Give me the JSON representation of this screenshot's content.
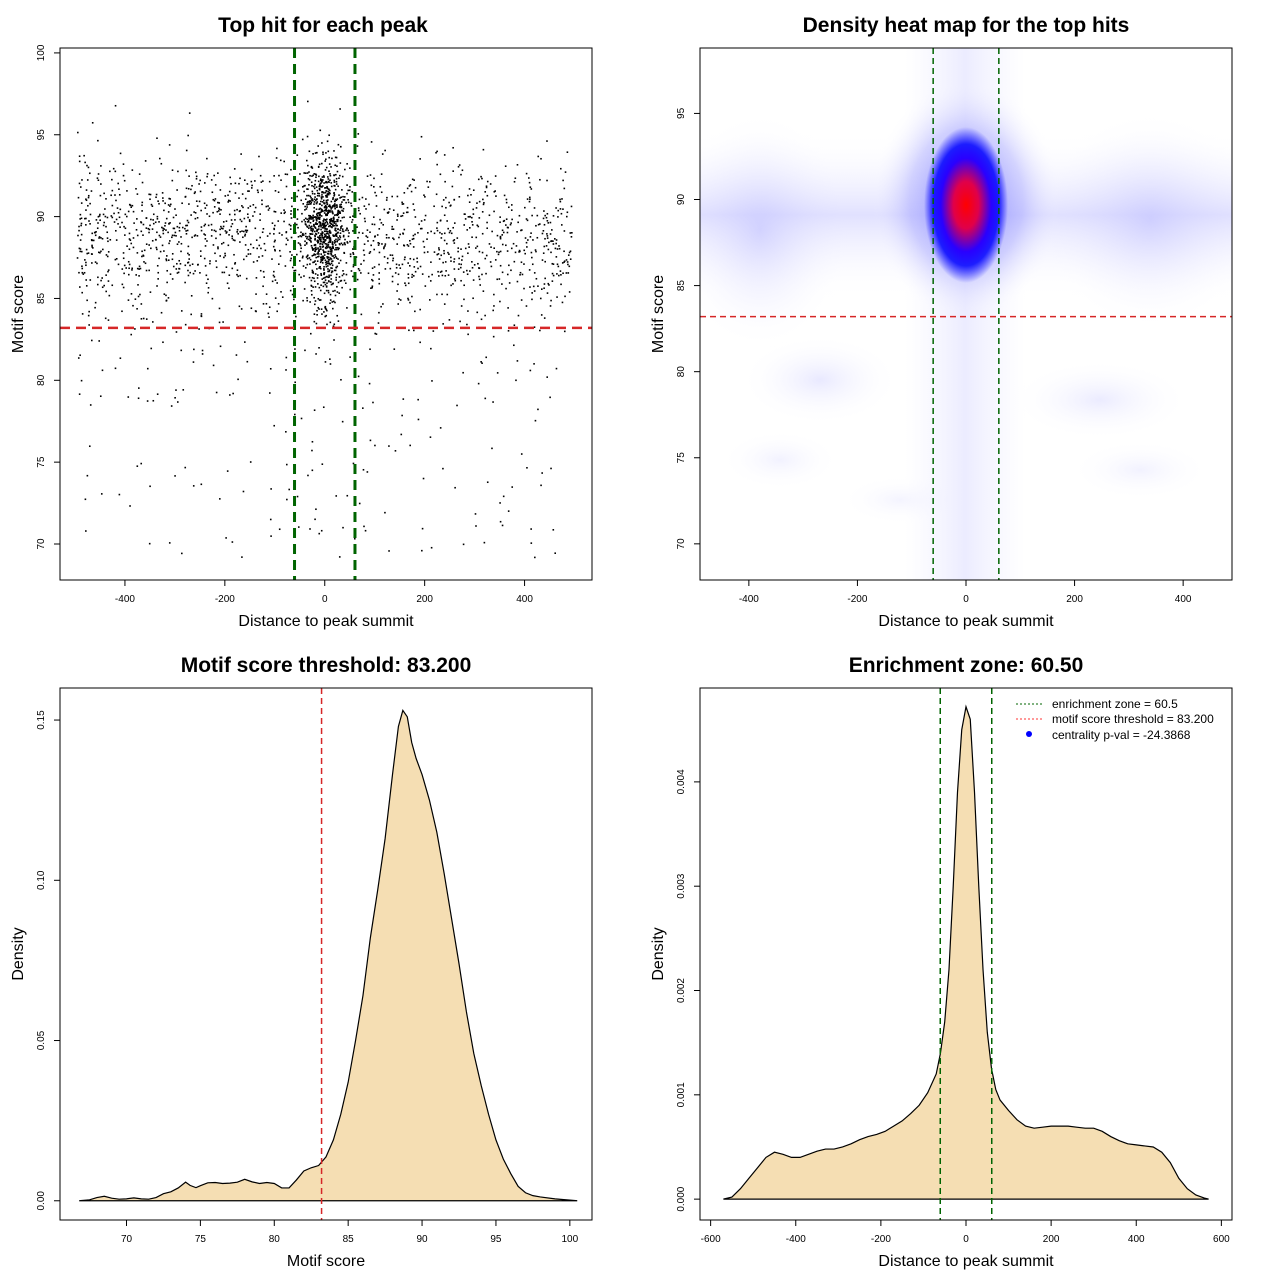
{
  "chart_data": [
    {
      "id": "scatter",
      "type": "scatter",
      "title": "Top hit for each peak",
      "xlabel": "Distance to peak summit",
      "ylabel": "Motif score",
      "xlim": [
        -530,
        535
      ],
      "ylim": [
        67.8,
        100.3
      ],
      "xticks": [
        -400,
        -200,
        0,
        200,
        400
      ],
      "yticks": [
        70,
        75,
        80,
        85,
        90,
        95,
        100
      ],
      "vlines": [
        -60.5,
        60.5
      ],
      "hline": 83.2,
      "point_count": 2600,
      "point_color": "#000000",
      "vline_color": "#006400",
      "hline_color": "#d62728"
    },
    {
      "id": "heatmap",
      "type": "heatmap",
      "title": "Density heat map for the top hits",
      "xlabel": "Distance to peak summit",
      "ylabel": "Motif score",
      "xlim": [
        -490,
        490
      ],
      "ylim": [
        67.9,
        98.8
      ],
      "xticks": [
        -400,
        -200,
        0,
        200,
        400
      ],
      "yticks": [
        70,
        75,
        80,
        85,
        90,
        95
      ],
      "vlines": [
        -60.5,
        60.5
      ],
      "hline": 83.2,
      "palette": [
        "#ffffff",
        "#0000ff",
        "#ff0000"
      ],
      "vline_color": "#006400",
      "hline_color": "#d62728"
    },
    {
      "id": "score_density",
      "type": "area",
      "title": "Motif score threshold: 83.200",
      "xlabel": "Motif score",
      "ylabel": "Density",
      "xlim": [
        65.5,
        101.5
      ],
      "ylim": [
        -0.006,
        0.16
      ],
      "xticks": [
        70,
        75,
        80,
        85,
        90,
        95,
        100
      ],
      "yticks": [
        0.0,
        0.05,
        0.1,
        0.15
      ],
      "ytick_labels": [
        "0.00",
        "0.05",
        "0.10",
        "0.15"
      ],
      "fill": "#f5deb3",
      "vline": 83.2,
      "vline_color": "#d62728",
      "x": [
        66.8,
        67.5,
        68.0,
        68.5,
        69.0,
        69.5,
        70.0,
        70.5,
        71.0,
        71.5,
        72.0,
        72.5,
        73.0,
        73.5,
        74.0,
        74.3,
        74.7,
        75.0,
        75.5,
        76.0,
        76.5,
        77.0,
        77.5,
        78.0,
        78.5,
        79.0,
        79.5,
        80.0,
        80.5,
        81.0,
        81.5,
        82.0,
        82.5,
        83.0,
        83.5,
        84.0,
        84.5,
        85.0,
        85.5,
        86.0,
        86.5,
        87.0,
        87.5,
        88.0,
        88.4,
        88.7,
        89.0,
        89.3,
        89.6,
        90.0,
        90.5,
        91.0,
        91.5,
        92.0,
        92.5,
        93.0,
        93.5,
        94.0,
        94.5,
        95.0,
        95.5,
        96.0,
        96.5,
        97.0,
        97.5,
        98.0,
        99.0,
        100.0,
        100.5
      ],
      "y": [
        0.0,
        0.0003,
        0.001,
        0.0014,
        0.0008,
        0.0005,
        0.0006,
        0.0009,
        0.0006,
        0.0005,
        0.001,
        0.0022,
        0.0028,
        0.004,
        0.0058,
        0.0048,
        0.0041,
        0.0047,
        0.0056,
        0.0057,
        0.0054,
        0.0055,
        0.0058,
        0.0067,
        0.0059,
        0.0054,
        0.0057,
        0.0054,
        0.004,
        0.004,
        0.0065,
        0.0093,
        0.0103,
        0.011,
        0.0137,
        0.019,
        0.027,
        0.037,
        0.05,
        0.064,
        0.082,
        0.097,
        0.113,
        0.133,
        0.148,
        0.153,
        0.151,
        0.143,
        0.138,
        0.133,
        0.125,
        0.115,
        0.102,
        0.088,
        0.074,
        0.059,
        0.046,
        0.036,
        0.027,
        0.019,
        0.013,
        0.0085,
        0.0045,
        0.0025,
        0.0016,
        0.0012,
        0.0006,
        0.0002,
        0.0
      ]
    },
    {
      "id": "distance_density",
      "type": "area",
      "title": "Enrichment zone: 60.50",
      "xlabel": "Distance to peak summit",
      "ylabel": "Density",
      "xlim": [
        -625,
        625
      ],
      "ylim": [
        -0.0002,
        0.0049
      ],
      "xticks": [
        -600,
        -400,
        -200,
        0,
        200,
        400,
        600
      ],
      "yticks": [
        0.0,
        0.001,
        0.002,
        0.003,
        0.004
      ],
      "ytick_labels": [
        "0.000",
        "0.001",
        "0.002",
        "0.003",
        "0.004"
      ],
      "fill": "#f5deb3",
      "vlines": [
        -60.5,
        60.5
      ],
      "vline_color": "#006400",
      "x": [
        -570,
        -550,
        -530,
        -510,
        -490,
        -470,
        -450,
        -430,
        -410,
        -390,
        -370,
        -350,
        -330,
        -310,
        -290,
        -270,
        -250,
        -230,
        -210,
        -190,
        -170,
        -150,
        -130,
        -110,
        -90,
        -70,
        -60,
        -50,
        -40,
        -30,
        -20,
        -10,
        0,
        10,
        20,
        30,
        40,
        50,
        60,
        70,
        80,
        100,
        120,
        140,
        160,
        180,
        200,
        220,
        240,
        260,
        280,
        300,
        320,
        340,
        360,
        380,
        400,
        420,
        440,
        460,
        480,
        500,
        520,
        540,
        560,
        570
      ],
      "y": [
        0.0,
        2e-05,
        0.0001,
        0.0002,
        0.0003,
        0.0004,
        0.00045,
        0.00043,
        0.0004,
        0.0004,
        0.00043,
        0.00046,
        0.00048,
        0.00048,
        0.0005,
        0.00053,
        0.00057,
        0.0006,
        0.00062,
        0.00065,
        0.0007,
        0.00075,
        0.00082,
        0.0009,
        0.00102,
        0.0012,
        0.0014,
        0.0017,
        0.0022,
        0.003,
        0.0039,
        0.0045,
        0.00472,
        0.0046,
        0.0039,
        0.003,
        0.0022,
        0.0016,
        0.00125,
        0.00105,
        0.00095,
        0.00085,
        0.00076,
        0.0007,
        0.00068,
        0.00069,
        0.0007,
        0.0007,
        0.0007,
        0.00069,
        0.00068,
        0.00068,
        0.00065,
        0.0006,
        0.00056,
        0.00053,
        0.00052,
        0.00051,
        0.0005,
        0.00045,
        0.00035,
        0.0002,
        0.0001,
        4e-05,
        1e-05,
        0.0
      ]
    }
  ],
  "legend": {
    "placement": "top-right",
    "items": [
      {
        "label": "enrichment zone = 60.5",
        "color": "#006400",
        "style": "dotted"
      },
      {
        "label": "motif score threshold = 83.200",
        "color": "#ff3333",
        "style": "dotted"
      },
      {
        "label": "centrality p-val = -24.3868",
        "color": "#0000ff",
        "style": "point"
      }
    ]
  }
}
